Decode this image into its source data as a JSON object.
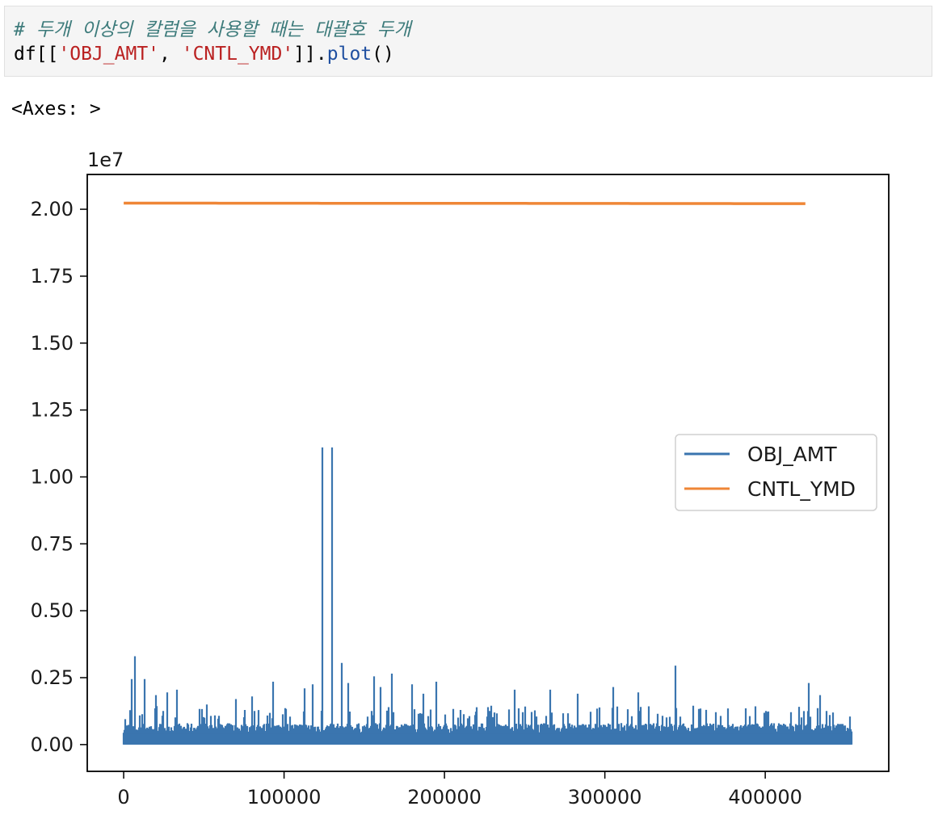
{
  "code": {
    "comment": "# 두개 이상의 칼럼을 사용할 때는 대괄호 두개",
    "prefix": "df[[",
    "arg1": "'OBJ_AMT'",
    "sep": ", ",
    "arg2": "'CNTL_YMD'",
    "mid": "]].",
    "method": "plot",
    "suffix": "()"
  },
  "output": {
    "text": "<Axes: >"
  },
  "chart_data": {
    "type": "line",
    "offset_text": "1e7",
    "xlim": [
      -22700,
      477000
    ],
    "ylim": [
      -1000000,
      21300000
    ],
    "xticks": [
      0,
      100000,
      200000,
      300000,
      400000
    ],
    "xtick_labels": [
      "0",
      "100000",
      "200000",
      "300000",
      "400000"
    ],
    "yticks": [
      0,
      2500000,
      5000000,
      7500000,
      10000000,
      12500000,
      15000000,
      17500000,
      20000000
    ],
    "ytick_labels": [
      "0.00",
      "0.25",
      "0.50",
      "0.75",
      "1.00",
      "1.25",
      "1.50",
      "1.75",
      "2.00"
    ],
    "grid": false,
    "legend_position": "center-right",
    "series": [
      {
        "name": "OBJ_AMT",
        "color": "#3a75af",
        "x_range": [
          0,
          454000
        ],
        "baseline_band": [
          0,
          800000
        ],
        "peaks": [
          {
            "x": 1000,
            "y": 950000
          },
          {
            "x": 5000,
            "y": 2450000
          },
          {
            "x": 7000,
            "y": 3300000
          },
          {
            "x": 13000,
            "y": 2450000
          },
          {
            "x": 20000,
            "y": 1850000
          },
          {
            "x": 27000,
            "y": 1950000
          },
          {
            "x": 33000,
            "y": 2050000
          },
          {
            "x": 52000,
            "y": 1500000
          },
          {
            "x": 70000,
            "y": 1700000
          },
          {
            "x": 80000,
            "y": 1800000
          },
          {
            "x": 93000,
            "y": 2350000
          },
          {
            "x": 113000,
            "y": 2100000
          },
          {
            "x": 118000,
            "y": 2250000
          },
          {
            "x": 124000,
            "y": 11100000
          },
          {
            "x": 130000,
            "y": 11100000
          },
          {
            "x": 136000,
            "y": 3050000
          },
          {
            "x": 140000,
            "y": 2300000
          },
          {
            "x": 156000,
            "y": 2550000
          },
          {
            "x": 160000,
            "y": 2150000
          },
          {
            "x": 167000,
            "y": 2650000
          },
          {
            "x": 180000,
            "y": 2250000
          },
          {
            "x": 187000,
            "y": 1900000
          },
          {
            "x": 195000,
            "y": 2350000
          },
          {
            "x": 229000,
            "y": 1450000
          },
          {
            "x": 244000,
            "y": 2050000
          },
          {
            "x": 266000,
            "y": 2050000
          },
          {
            "x": 283000,
            "y": 1900000
          },
          {
            "x": 305000,
            "y": 2150000
          },
          {
            "x": 321000,
            "y": 1950000
          },
          {
            "x": 344000,
            "y": 2950000
          },
          {
            "x": 355000,
            "y": 1450000
          },
          {
            "x": 377000,
            "y": 1350000
          },
          {
            "x": 427000,
            "y": 2300000
          },
          {
            "x": 434000,
            "y": 1850000
          },
          {
            "x": 442000,
            "y": 1200000
          }
        ]
      },
      {
        "name": "CNTL_YMD",
        "color": "#ef8636",
        "x_range": [
          0,
          425000
        ],
        "y_start": 20230000,
        "y_end": 20210000
      }
    ]
  }
}
